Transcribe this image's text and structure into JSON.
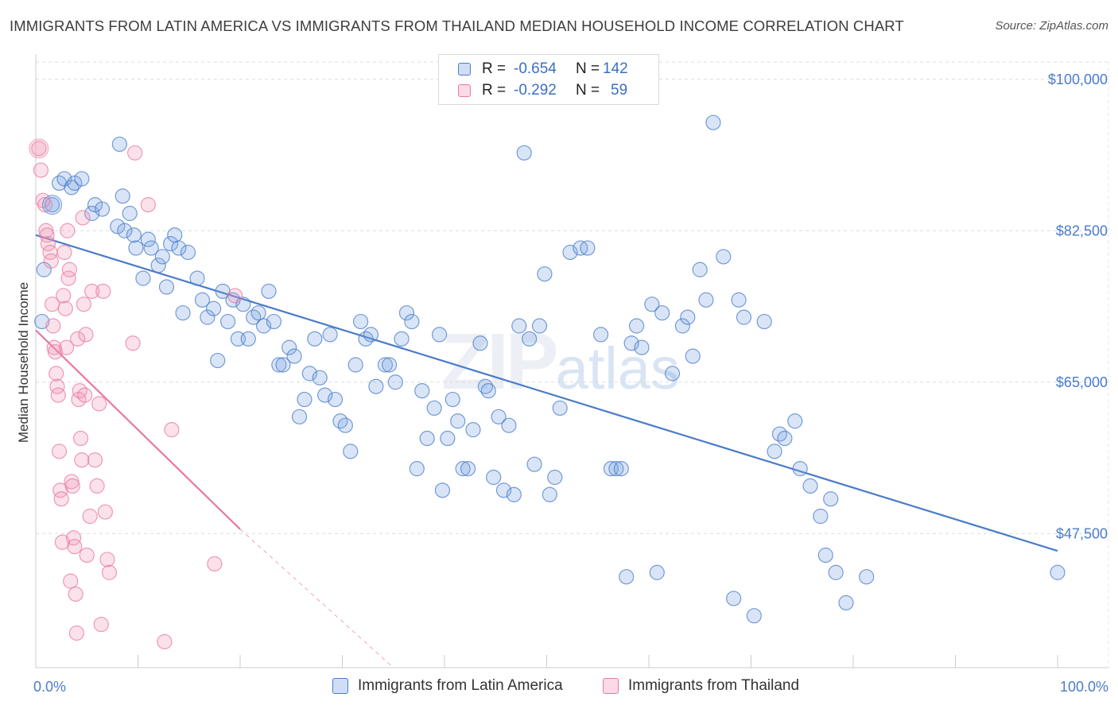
{
  "header": {
    "title": "IMMIGRANTS FROM LATIN AMERICA VS IMMIGRANTS FROM THAILAND MEDIAN HOUSEHOLD INCOME CORRELATION CHART",
    "source": "Source: ZipAtlas.com"
  },
  "watermark": {
    "main": "ZIP",
    "sub": "atlas"
  },
  "legend": {
    "rows": [
      {
        "r_label": "R =",
        "r_value": "-0.654",
        "n_label": "N =",
        "n_value": "142",
        "color": "#4a7cc9"
      },
      {
        "r_label": "R =",
        "r_value": "-0.292",
        "n_label": "N =",
        "n_value": "59",
        "color": "#e87aa0"
      }
    ]
  },
  "bottom_legend": {
    "items": [
      {
        "label": "Immigrants from Latin America",
        "color": "#4a7cc9"
      },
      {
        "label": "Immigrants from Thailand",
        "color": "#e87aa0"
      }
    ]
  },
  "chart_data": {
    "type": "scatter",
    "title": "IMMIGRANTS FROM LATIN AMERICA VS IMMIGRANTS FROM THAILAND MEDIAN HOUSEHOLD INCOME CORRELATION CHART",
    "xlabel": "",
    "ylabel": "Median Household Income",
    "xlim": [
      0,
      100
    ],
    "ylim": [
      32000,
      102000
    ],
    "x_tick_labels": [
      "0.0%",
      "100.0%"
    ],
    "y_ticks": [
      100000,
      82500,
      65000,
      47500
    ],
    "y_tick_labels": [
      "$100,000",
      "$82,500",
      "$65,000",
      "$47,500"
    ],
    "grid": true,
    "legend_position": "top-center",
    "series": [
      {
        "name": "Immigrants from Latin America",
        "color": "#4a7cc9",
        "trend": {
          "x": [
            0,
            100
          ],
          "y": [
            82000,
            45500
          ]
        },
        "points": [
          [
            0.6,
            72000
          ],
          [
            0.8,
            78000
          ],
          [
            1.6,
            85500
          ],
          [
            2.3,
            88000
          ],
          [
            2.8,
            88500
          ],
          [
            3.5,
            87500
          ],
          [
            3.8,
            88000
          ],
          [
            4.5,
            88500
          ],
          [
            5.5,
            84500
          ],
          [
            5.8,
            85500
          ],
          [
            6.5,
            85000
          ],
          [
            8.0,
            83000
          ],
          [
            8.7,
            82500
          ],
          [
            8.2,
            92500
          ],
          [
            8.5,
            86500
          ],
          [
            9.2,
            84500
          ],
          [
            9.6,
            82000
          ],
          [
            9.8,
            80500
          ],
          [
            10.5,
            77000
          ],
          [
            11.0,
            81500
          ],
          [
            11.3,
            80500
          ],
          [
            12.0,
            78500
          ],
          [
            12.4,
            79500
          ],
          [
            12.8,
            76000
          ],
          [
            13.2,
            81000
          ],
          [
            13.6,
            82000
          ],
          [
            14.0,
            80500
          ],
          [
            14.4,
            73000
          ],
          [
            14.9,
            80000
          ],
          [
            15.8,
            77000
          ],
          [
            16.3,
            74500
          ],
          [
            16.8,
            72500
          ],
          [
            17.4,
            73500
          ],
          [
            17.8,
            67500
          ],
          [
            18.3,
            75500
          ],
          [
            18.8,
            72000
          ],
          [
            19.3,
            74500
          ],
          [
            19.8,
            70000
          ],
          [
            20.3,
            74000
          ],
          [
            20.8,
            70000
          ],
          [
            21.3,
            72500
          ],
          [
            21.8,
            73000
          ],
          [
            22.3,
            71500
          ],
          [
            22.8,
            75500
          ],
          [
            23.3,
            72000
          ],
          [
            23.8,
            67000
          ],
          [
            24.2,
            67000
          ],
          [
            24.8,
            69000
          ],
          [
            25.3,
            68000
          ],
          [
            25.8,
            61000
          ],
          [
            26.3,
            63000
          ],
          [
            26.8,
            66000
          ],
          [
            27.3,
            70000
          ],
          [
            27.8,
            65500
          ],
          [
            28.3,
            63500
          ],
          [
            28.8,
            70500
          ],
          [
            29.3,
            63000
          ],
          [
            29.8,
            60500
          ],
          [
            30.3,
            60000
          ],
          [
            30.8,
            57000
          ],
          [
            31.3,
            67000
          ],
          [
            31.8,
            72000
          ],
          [
            32.3,
            70000
          ],
          [
            32.8,
            70500
          ],
          [
            33.3,
            64500
          ],
          [
            34.2,
            67000
          ],
          [
            34.6,
            67000
          ],
          [
            35.2,
            65000
          ],
          [
            35.8,
            70000
          ],
          [
            36.3,
            73000
          ],
          [
            36.8,
            72000
          ],
          [
            37.3,
            55000
          ],
          [
            37.8,
            64000
          ],
          [
            38.3,
            58500
          ],
          [
            39.0,
            62000
          ],
          [
            39.5,
            70500
          ],
          [
            39.8,
            52500
          ],
          [
            40.3,
            58500
          ],
          [
            40.8,
            63000
          ],
          [
            41.3,
            60500
          ],
          [
            41.8,
            55000
          ],
          [
            42.3,
            55000
          ],
          [
            42.8,
            59500
          ],
          [
            43.5,
            69500
          ],
          [
            44.0,
            64500
          ],
          [
            44.3,
            64000
          ],
          [
            44.8,
            54000
          ],
          [
            45.3,
            61000
          ],
          [
            45.8,
            52500
          ],
          [
            46.3,
            60000
          ],
          [
            46.8,
            52000
          ],
          [
            47.3,
            71500
          ],
          [
            47.8,
            91500
          ],
          [
            48.3,
            70000
          ],
          [
            48.8,
            55500
          ],
          [
            49.3,
            71500
          ],
          [
            49.8,
            77500
          ],
          [
            50.3,
            52000
          ],
          [
            50.8,
            54000
          ],
          [
            51.3,
            62000
          ],
          [
            52.3,
            80000
          ],
          [
            53.3,
            80500
          ],
          [
            54.0,
            80500
          ],
          [
            55.3,
            70500
          ],
          [
            56.3,
            55000
          ],
          [
            56.8,
            55000
          ],
          [
            57.3,
            55000
          ],
          [
            57.8,
            42500
          ],
          [
            58.3,
            69500
          ],
          [
            58.8,
            71500
          ],
          [
            59.3,
            69000
          ],
          [
            60.3,
            74000
          ],
          [
            60.8,
            43000
          ],
          [
            61.3,
            73000
          ],
          [
            62.3,
            66000
          ],
          [
            63.3,
            71500
          ],
          [
            63.8,
            72500
          ],
          [
            64.3,
            68000
          ],
          [
            65.0,
            78000
          ],
          [
            65.6,
            74500
          ],
          [
            66.3,
            95000
          ],
          [
            67.3,
            79500
          ],
          [
            68.3,
            40000
          ],
          [
            68.8,
            74500
          ],
          [
            69.3,
            72500
          ],
          [
            70.3,
            38000
          ],
          [
            71.3,
            72000
          ],
          [
            72.3,
            57000
          ],
          [
            72.8,
            59000
          ],
          [
            73.3,
            58500
          ],
          [
            74.3,
            60500
          ],
          [
            74.8,
            55000
          ],
          [
            75.8,
            53000
          ],
          [
            76.8,
            49500
          ],
          [
            77.3,
            45000
          ],
          [
            77.8,
            51500
          ],
          [
            78.3,
            43000
          ],
          [
            79.3,
            39500
          ],
          [
            81.3,
            42500
          ],
          [
            100.0,
            43000
          ]
        ]
      },
      {
        "name": "Immigrants from Thailand",
        "color": "#e87aa0",
        "trend": {
          "x": [
            0,
            20
          ],
          "y": [
            71000,
            48000
          ]
        },
        "trend_dashed_extension": {
          "x": [
            20,
            35
          ],
          "y": [
            48000,
            32000
          ]
        },
        "points": [
          [
            0.3,
            92000
          ],
          [
            0.5,
            89500
          ],
          [
            0.7,
            86000
          ],
          [
            0.9,
            85500
          ],
          [
            1.0,
            82500
          ],
          [
            1.1,
            82000
          ],
          [
            1.2,
            81000
          ],
          [
            1.4,
            80000
          ],
          [
            1.5,
            79000
          ],
          [
            1.6,
            74000
          ],
          [
            1.7,
            71500
          ],
          [
            1.8,
            69000
          ],
          [
            1.9,
            68500
          ],
          [
            2.0,
            66000
          ],
          [
            2.1,
            64500
          ],
          [
            2.2,
            63500
          ],
          [
            2.3,
            57000
          ],
          [
            2.4,
            52500
          ],
          [
            2.5,
            51500
          ],
          [
            2.6,
            46500
          ],
          [
            2.7,
            75000
          ],
          [
            2.8,
            80000
          ],
          [
            2.9,
            73500
          ],
          [
            3.0,
            69000
          ],
          [
            3.1,
            82500
          ],
          [
            3.2,
            77000
          ],
          [
            3.3,
            78000
          ],
          [
            3.4,
            42000
          ],
          [
            3.5,
            53500
          ],
          [
            3.6,
            53000
          ],
          [
            3.7,
            47000
          ],
          [
            3.8,
            46000
          ],
          [
            3.9,
            40500
          ],
          [
            4.0,
            36000
          ],
          [
            4.1,
            70000
          ],
          [
            4.2,
            63000
          ],
          [
            4.3,
            64000
          ],
          [
            4.4,
            58500
          ],
          [
            4.5,
            56000
          ],
          [
            4.6,
            84000
          ],
          [
            4.7,
            74000
          ],
          [
            4.8,
            63500
          ],
          [
            4.9,
            70500
          ],
          [
            5.0,
            45000
          ],
          [
            5.3,
            49500
          ],
          [
            5.5,
            75500
          ],
          [
            5.8,
            56000
          ],
          [
            6.0,
            53000
          ],
          [
            6.2,
            62500
          ],
          [
            6.4,
            37000
          ],
          [
            6.6,
            75500
          ],
          [
            6.8,
            50000
          ],
          [
            7.0,
            44500
          ],
          [
            7.2,
            43000
          ],
          [
            9.5,
            69500
          ],
          [
            9.7,
            91500
          ],
          [
            11.0,
            85500
          ],
          [
            12.6,
            35000
          ],
          [
            13.3,
            59500
          ],
          [
            17.5,
            44000
          ],
          [
            19.5,
            75000
          ]
        ]
      }
    ]
  }
}
